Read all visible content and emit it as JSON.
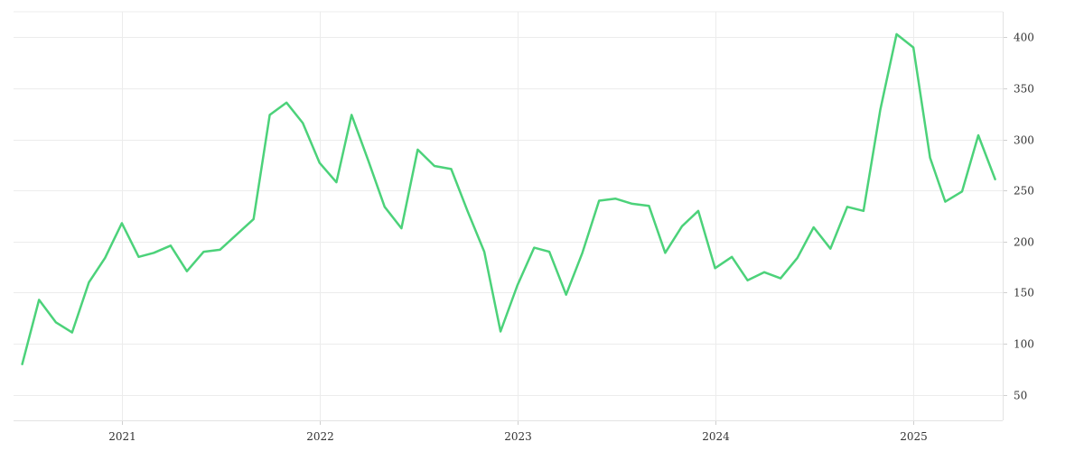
{
  "chart_data": {
    "type": "line",
    "title": "",
    "xlabel": "",
    "ylabel": "",
    "x_axis": {
      "type": "date",
      "range": [
        "2020-06-15",
        "2025-06-15"
      ],
      "ticks": [
        {
          "date": "2021-01-01",
          "label": "2021"
        },
        {
          "date": "2022-01-01",
          "label": "2022"
        },
        {
          "date": "2023-01-01",
          "label": "2023"
        },
        {
          "date": "2024-01-01",
          "label": "2024"
        },
        {
          "date": "2025-01-01",
          "label": "2025"
        }
      ]
    },
    "y_axis": {
      "position": "right",
      "range": [
        25,
        425
      ],
      "ticks": [
        {
          "value": 50,
          "label": "50"
        },
        {
          "value": 100,
          "label": "100"
        },
        {
          "value": 150,
          "label": "150"
        },
        {
          "value": 200,
          "label": "200"
        },
        {
          "value": 250,
          "label": "250"
        },
        {
          "value": 300,
          "label": "300"
        },
        {
          "value": 350,
          "label": "350"
        },
        {
          "value": 400,
          "label": "400"
        }
      ]
    },
    "grid": true,
    "legend": "none",
    "colors": {
      "line": "#4cd27a",
      "grid": "#ececec",
      "text": "#333333"
    },
    "series": [
      {
        "x": [
          "2020-07-01",
          "2020-08-01",
          "2020-09-01",
          "2020-10-01",
          "2020-11-01",
          "2020-12-01",
          "2021-01-01",
          "2021-02-01",
          "2021-03-01",
          "2021-04-01",
          "2021-05-01",
          "2021-06-01",
          "2021-07-01",
          "2021-08-01",
          "2021-09-01",
          "2021-10-01",
          "2021-11-01",
          "2021-12-01",
          "2022-01-01",
          "2022-02-01",
          "2022-03-01",
          "2022-04-01",
          "2022-05-01",
          "2022-06-01",
          "2022-07-01",
          "2022-08-01",
          "2022-09-01",
          "2022-10-01",
          "2022-11-01",
          "2022-12-01",
          "2023-01-01",
          "2023-02-01",
          "2023-03-01",
          "2023-04-01",
          "2023-05-01",
          "2023-06-01",
          "2023-07-01",
          "2023-08-01",
          "2023-09-01",
          "2023-10-01",
          "2023-11-01",
          "2023-12-01",
          "2024-01-01",
          "2024-02-01",
          "2024-03-01",
          "2024-04-01",
          "2024-05-01",
          "2024-06-01",
          "2024-07-01",
          "2024-08-01",
          "2024-09-01",
          "2024-10-01",
          "2024-11-01",
          "2024-12-01",
          "2025-01-01",
          "2025-02-01",
          "2025-03-01",
          "2025-04-01",
          "2025-05-01",
          "2025-06-01"
        ],
        "values": [
          80,
          143,
          121,
          111,
          160,
          184,
          218,
          185,
          189,
          196,
          171,
          190,
          192,
          207,
          222,
          324,
          336,
          316,
          277,
          258,
          324,
          279,
          234,
          213,
          290,
          274,
          271,
          230,
          190,
          112,
          157,
          194,
          190,
          148,
          189,
          240,
          242,
          237,
          235,
          189,
          215,
          230,
          174,
          185,
          162,
          170,
          164,
          184,
          214,
          193,
          234,
          230,
          329,
          403,
          390,
          282,
          239,
          249,
          304,
          261
        ]
      }
    ]
  }
}
